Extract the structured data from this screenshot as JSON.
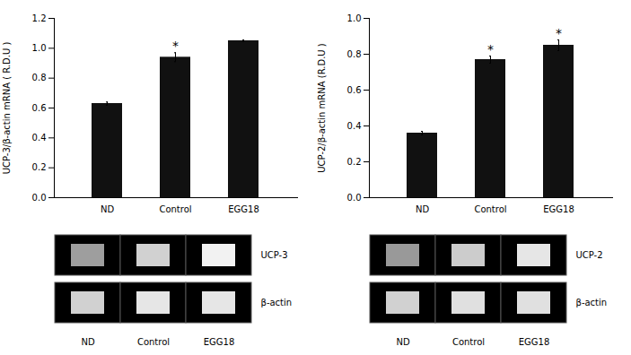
{
  "chart_data": [
    {
      "type": "bar",
      "categories": [
        "ND",
        "Control",
        "EGG18"
      ],
      "values": [
        0.63,
        0.94,
        1.05
      ],
      "errors": [
        0.01,
        0.03,
        0.005
      ],
      "color": "#111111",
      "y_label": "UCP-3/β-actin mRNA ( R.D.U )",
      "ylim": [
        0.0,
        1.2
      ],
      "yticks": [
        {
          "value": 0.0,
          "label": "0.0"
        },
        0.2,
        0.4,
        0.6,
        0.8,
        {
          "value": 1.0,
          "label": "1.0"
        },
        1.2
      ],
      "grid": false,
      "annotations": [
        {
          "category": "Control",
          "text": "*"
        }
      ],
      "gel": {
        "labels": [
          "UCP-3",
          "β-actin"
        ],
        "brightness": [
          [
            0.62,
            0.82,
            0.95
          ],
          [
            0.82,
            0.9,
            0.9
          ]
        ]
      }
    },
    {
      "type": "bar",
      "categories": [
        "ND",
        "Control",
        "EGG18"
      ],
      "values": [
        0.36,
        0.77,
        0.85
      ],
      "errors": [
        0.01,
        0.02,
        0.03
      ],
      "color": "#111111",
      "y_label": "UCP-2/β-actin mRNA (R.D.U )",
      "ylim": [
        0.0,
        1.0
      ],
      "yticks": [
        {
          "value": 0.0,
          "label": "0.0"
        },
        0.2,
        0.4,
        0.6,
        0.8,
        {
          "value": 1.0,
          "label": "1.0"
        }
      ],
      "grid": false,
      "annotations": [
        {
          "category": "Control",
          "text": "*"
        },
        {
          "category": "EGG18",
          "text": "*"
        }
      ],
      "gel": {
        "labels": [
          "UCP-2",
          "β-actin"
        ],
        "brightness": [
          [
            0.6,
            0.8,
            0.9
          ],
          [
            0.82,
            0.88,
            0.88
          ]
        ]
      }
    }
  ]
}
